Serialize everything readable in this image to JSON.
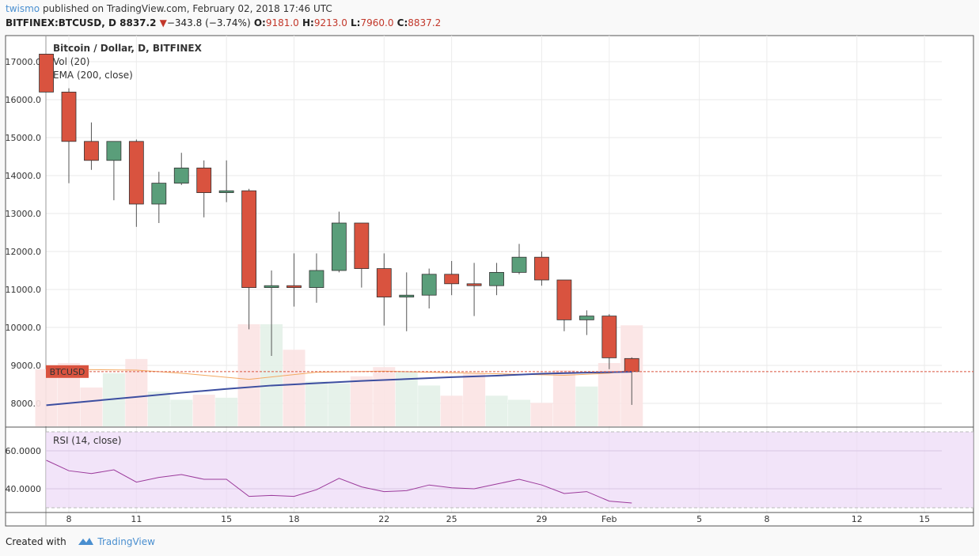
{
  "header": {
    "user": "twismo",
    "published": " published on TradingView.com, February 02, 2018 17:46 UTC",
    "symbol": "BITFINEX:BTCUSD, D",
    "last": "8837.2",
    "change": "−343.8 (−3.74%)",
    "o_label": "O:",
    "o": "9181.0",
    "h_label": "H:",
    "h": "9213.0",
    "l_label": "L:",
    "l": "7960.0",
    "c_label": "C:",
    "c": "8837.2"
  },
  "footer": {
    "created": "Created with",
    "brand": "TradingView"
  },
  "colors": {
    "up": "#5a9e7a",
    "down": "#d9533f",
    "ema": "#3c4ea0",
    "volma": "#f3a860",
    "rsi": "#9b3a9b",
    "rsi_band": "#ecd8f6",
    "price_line": "#d9533f"
  },
  "icons": {
    "brand_logo": "tradingview-cloud-icon",
    "down_arrow": "triangle-down-icon"
  },
  "chart_data": {
    "type": "candlestick",
    "title": "Bitcoin / Dollar, D, BITFINEX",
    "legend": [
      "Vol (20)",
      "EMA (200, close)"
    ],
    "price_tag": "BTCUSD",
    "last_price": 8837.2,
    "y_ticks": [
      8000,
      9000,
      10000,
      11000,
      12000,
      13000,
      14000,
      15000,
      16000,
      17000
    ],
    "y_tick_labels": [
      "8000.0",
      "9000.0",
      "10000.0",
      "11000.0",
      "12000.0",
      "13000.0",
      "14000.0",
      "15000.0",
      "16000.0",
      "17000.0"
    ],
    "ylim": [
      7400,
      17550
    ],
    "x_ticks": [
      {
        "day": 0,
        "label": "8"
      },
      {
        "day": 3,
        "label": "11"
      },
      {
        "day": 7,
        "label": "15"
      },
      {
        "day": 10,
        "label": "18"
      },
      {
        "day": 14,
        "label": "22"
      },
      {
        "day": 17,
        "label": "25"
      },
      {
        "day": 21,
        "label": "29"
      },
      {
        "day": 24,
        "label": "Feb"
      },
      {
        "day": 28,
        "label": "5"
      },
      {
        "day": 31,
        "label": "8"
      },
      {
        "day": 35,
        "label": "12"
      },
      {
        "day": 38,
        "label": "15"
      }
    ],
    "candles": [
      {
        "day": -1,
        "o": 17200,
        "h": 17200,
        "l": 16200,
        "c": 16200
      },
      {
        "day": 0,
        "o": 16200,
        "h": 16300,
        "l": 13800,
        "c": 14900
      },
      {
        "day": 1,
        "o": 14900,
        "h": 15400,
        "l": 14150,
        "c": 14400
      },
      {
        "day": 2,
        "o": 14400,
        "h": 14900,
        "l": 13350,
        "c": 14900
      },
      {
        "day": 3,
        "o": 14900,
        "h": 14950,
        "l": 12650,
        "c": 13250
      },
      {
        "day": 4,
        "o": 13250,
        "h": 14100,
        "l": 12750,
        "c": 13800
      },
      {
        "day": 5,
        "o": 13800,
        "h": 14600,
        "l": 13750,
        "c": 14200
      },
      {
        "day": 6,
        "o": 14200,
        "h": 14400,
        "l": 12900,
        "c": 13550
      },
      {
        "day": 7,
        "o": 13550,
        "h": 14400,
        "l": 13300,
        "c": 13600
      },
      {
        "day": 8,
        "o": 13600,
        "h": 13650,
        "l": 9950,
        "c": 11050
      },
      {
        "day": 9,
        "o": 11050,
        "h": 11500,
        "l": 9250,
        "c": 11100
      },
      {
        "day": 10,
        "o": 11100,
        "h": 11950,
        "l": 10550,
        "c": 11050
      },
      {
        "day": 11,
        "o": 11050,
        "h": 11950,
        "l": 10650,
        "c": 11500
      },
      {
        "day": 12,
        "o": 11500,
        "h": 13050,
        "l": 11450,
        "c": 12750
      },
      {
        "day": 13,
        "o": 12750,
        "h": 12750,
        "l": 11050,
        "c": 11550
      },
      {
        "day": 14,
        "o": 11550,
        "h": 11950,
        "l": 10050,
        "c": 10800
      },
      {
        "day": 15,
        "o": 10800,
        "h": 11450,
        "l": 9900,
        "c": 10850
      },
      {
        "day": 16,
        "o": 10850,
        "h": 11550,
        "l": 10500,
        "c": 11400
      },
      {
        "day": 17,
        "o": 11400,
        "h": 11750,
        "l": 10850,
        "c": 11150
      },
      {
        "day": 18,
        "o": 11150,
        "h": 11700,
        "l": 10300,
        "c": 11100
      },
      {
        "day": 19,
        "o": 11100,
        "h": 11700,
        "l": 10850,
        "c": 11450
      },
      {
        "day": 20,
        "o": 11450,
        "h": 12200,
        "l": 11400,
        "c": 11850
      },
      {
        "day": 21,
        "o": 11850,
        "h": 12000,
        "l": 11100,
        "c": 11250
      },
      {
        "day": 22,
        "o": 11250,
        "h": 11250,
        "l": 9900,
        "c": 10200
      },
      {
        "day": 23,
        "o": 10200,
        "h": 10450,
        "l": 9800,
        "c": 10300
      },
      {
        "day": 24,
        "o": 10300,
        "h": 10350,
        "l": 8900,
        "c": 9200
      },
      {
        "day": 25,
        "o": 9181,
        "h": 9213,
        "l": 7960,
        "c": 8837.2
      }
    ],
    "volume": [
      {
        "day": -1,
        "dir": "down",
        "v": 0.56
      },
      {
        "day": 0,
        "dir": "down",
        "v": 0.62
      },
      {
        "day": 1,
        "dir": "down",
        "v": 0.38
      },
      {
        "day": 2,
        "dir": "up",
        "v": 0.52
      },
      {
        "day": 3,
        "dir": "down",
        "v": 0.66
      },
      {
        "day": 4,
        "dir": "up",
        "v": 0.34
      },
      {
        "day": 5,
        "dir": "up",
        "v": 0.26
      },
      {
        "day": 6,
        "dir": "down",
        "v": 0.31
      },
      {
        "day": 7,
        "dir": "up",
        "v": 0.28
      },
      {
        "day": 8,
        "dir": "down",
        "v": 1.0
      },
      {
        "day": 9,
        "dir": "up",
        "v": 1.0
      },
      {
        "day": 10,
        "dir": "down",
        "v": 0.75
      },
      {
        "day": 11,
        "dir": "up",
        "v": 0.44
      },
      {
        "day": 12,
        "dir": "up",
        "v": 0.42
      },
      {
        "day": 13,
        "dir": "down",
        "v": 0.49
      },
      {
        "day": 14,
        "dir": "down",
        "v": 0.58
      },
      {
        "day": 15,
        "dir": "up",
        "v": 0.54
      },
      {
        "day": 16,
        "dir": "up",
        "v": 0.4
      },
      {
        "day": 17,
        "dir": "down",
        "v": 0.3
      },
      {
        "day": 18,
        "dir": "down",
        "v": 0.52
      },
      {
        "day": 19,
        "dir": "up",
        "v": 0.3
      },
      {
        "day": 20,
        "dir": "up",
        "v": 0.26
      },
      {
        "day": 21,
        "dir": "down",
        "v": 0.23
      },
      {
        "day": 22,
        "dir": "down",
        "v": 0.55
      },
      {
        "day": 23,
        "dir": "up",
        "v": 0.39
      },
      {
        "day": 24,
        "dir": "down",
        "v": 0.62
      },
      {
        "day": 25,
        "dir": "down",
        "v": 0.99
      }
    ],
    "vol_ma": [
      {
        "day": -1,
        "v": 0.56
      },
      {
        "day": 3,
        "v": 0.55
      },
      {
        "day": 5,
        "v": 0.52
      },
      {
        "day": 8,
        "v": 0.46
      },
      {
        "day": 11,
        "v": 0.53
      },
      {
        "day": 14,
        "v": 0.54
      },
      {
        "day": 18,
        "v": 0.52
      },
      {
        "day": 22,
        "v": 0.5
      },
      {
        "day": 24,
        "v": 0.52
      },
      {
        "day": 25,
        "v": 0.55
      }
    ],
    "ema": [
      {
        "day": -1,
        "v": 7950
      },
      {
        "day": 1,
        "v": 8060
      },
      {
        "day": 3,
        "v": 8170
      },
      {
        "day": 5,
        "v": 8280
      },
      {
        "day": 7,
        "v": 8380
      },
      {
        "day": 9,
        "v": 8470
      },
      {
        "day": 11,
        "v": 8530
      },
      {
        "day": 13,
        "v": 8590
      },
      {
        "day": 15,
        "v": 8640
      },
      {
        "day": 17,
        "v": 8690
      },
      {
        "day": 19,
        "v": 8730
      },
      {
        "day": 21,
        "v": 8780
      },
      {
        "day": 23,
        "v": 8810
      },
      {
        "day": 25,
        "v": 8830
      }
    ],
    "rsi": {
      "label": "RSI (14, close)",
      "y_ticks": [
        40,
        60
      ],
      "y_tick_labels": [
        "40.0000",
        "60.0000"
      ],
      "band": [
        30,
        70
      ],
      "ylim": [
        27,
        72
      ],
      "values": [
        {
          "day": -1,
          "v": 55
        },
        {
          "day": 0,
          "v": 49.5
        },
        {
          "day": 1,
          "v": 48
        },
        {
          "day": 2,
          "v": 50
        },
        {
          "day": 3,
          "v": 43.5
        },
        {
          "day": 4,
          "v": 46
        },
        {
          "day": 5,
          "v": 47.5
        },
        {
          "day": 6,
          "v": 45
        },
        {
          "day": 7,
          "v": 45
        },
        {
          "day": 8,
          "v": 36
        },
        {
          "day": 9,
          "v": 36.5
        },
        {
          "day": 10,
          "v": 36
        },
        {
          "day": 11,
          "v": 39.5
        },
        {
          "day": 12,
          "v": 45.5
        },
        {
          "day": 13,
          "v": 41
        },
        {
          "day": 14,
          "v": 38.5
        },
        {
          "day": 15,
          "v": 39
        },
        {
          "day": 16,
          "v": 42
        },
        {
          "day": 17,
          "v": 40.5
        },
        {
          "day": 18,
          "v": 40
        },
        {
          "day": 19,
          "v": 42.5
        },
        {
          "day": 20,
          "v": 45
        },
        {
          "day": 21,
          "v": 42
        },
        {
          "day": 22,
          "v": 37.5
        },
        {
          "day": 23,
          "v": 38.5
        },
        {
          "day": 24,
          "v": 33.5
        },
        {
          "day": 25,
          "v": 32.5
        }
      ]
    }
  }
}
